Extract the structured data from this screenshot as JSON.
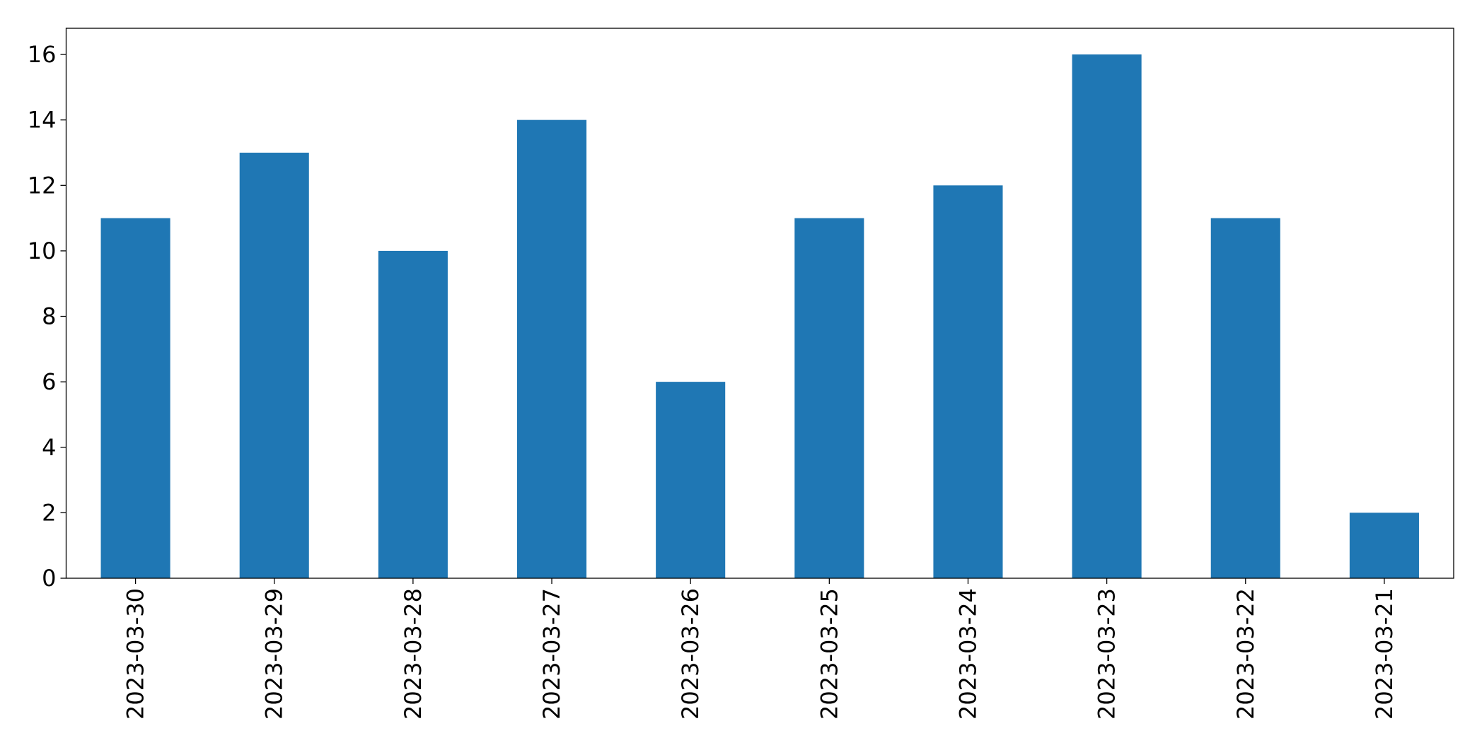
{
  "chart_data": {
    "type": "bar",
    "categories": [
      "2023-03-30",
      "2023-03-29",
      "2023-03-28",
      "2023-03-27",
      "2023-03-26",
      "2023-03-25",
      "2023-03-24",
      "2023-03-23",
      "2023-03-22",
      "2023-03-21"
    ],
    "values": [
      11,
      13,
      10,
      14,
      6,
      11,
      12,
      16,
      11,
      2
    ],
    "color": "#1f77b4",
    "ylim": [
      0,
      16.8
    ],
    "yticks": [
      0,
      2,
      4,
      6,
      8,
      10,
      12,
      14,
      16
    ],
    "grid": false
  }
}
